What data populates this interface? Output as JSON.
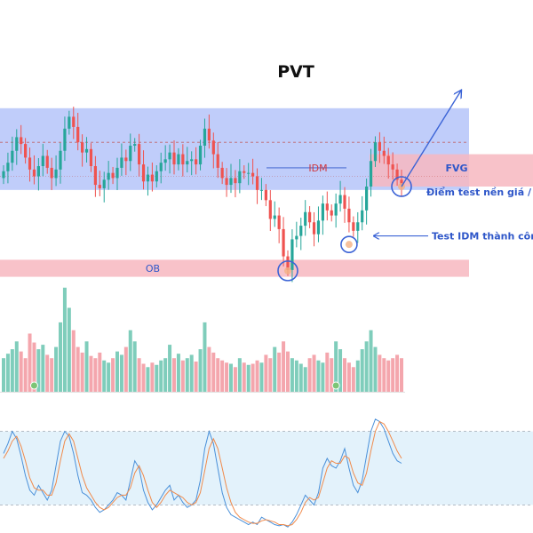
{
  "chart_data": {
    "type": "candlestick",
    "title": "PVT",
    "colors": {
      "up": "#26a69a",
      "down": "#ef5350",
      "vol_up": "#7fcdbb",
      "vol_down": "#f4a6ad",
      "range_box": "#b9c8fa",
      "zone_box": "#f7b7bf",
      "arrow": "#3b63d6",
      "stoch_k": "#4a90d9",
      "stoch_d": "#f08a4b",
      "stoch_band": "#e3f2fb"
    },
    "ohlc_series": {
      "name": "",
      "candles_hint": "daily candles, approx 95 bars",
      "closes": [
        31.4,
        31.9,
        32.6,
        33.4,
        33.0,
        32.2,
        31.5,
        31.1,
        31.7,
        32.3,
        31.6,
        31.0,
        31.5,
        32.6,
        33.9,
        34.6,
        34.0,
        33.1,
        32.5,
        32.7,
        31.7,
        30.6,
        30.4,
        30.9,
        31.3,
        31.0,
        31.6,
        32.2,
        32.0,
        32.9,
        33.0,
        31.8,
        30.8,
        31.2,
        30.8,
        31.4,
        31.9,
        32.1,
        32.5,
        31.8,
        32.4,
        31.8,
        32.0,
        32.1,
        31.8,
        32.9,
        33.9,
        33.2,
        32.4,
        31.6,
        31.0,
        30.6,
        31.0,
        30.7,
        31.4,
        31.3,
        31.3,
        31.1,
        30.3,
        30.3,
        29.7,
        28.6,
        28.8,
        28.0,
        26.4,
        25.6,
        27.4,
        27.6,
        28.2,
        29.0,
        28.4,
        27.7,
        28.5,
        29.5,
        29.1,
        28.8,
        29.5,
        30.0,
        29.2,
        28.4,
        27.9,
        28.4,
        29.1,
        30.5,
        32.0,
        33.1,
        32.6,
        32.3,
        31.8,
        31.5,
        30.9,
        30.6
      ],
      "ylim": [
        24.5,
        36.5
      ]
    },
    "volume_series": {
      "name": "",
      "values": [
        0.3,
        0.34,
        0.38,
        0.45,
        0.36,
        0.3,
        0.52,
        0.44,
        0.38,
        0.42,
        0.33,
        0.3,
        0.4,
        0.62,
        0.93,
        0.75,
        0.55,
        0.4,
        0.35,
        0.45,
        0.32,
        0.3,
        0.35,
        0.28,
        0.26,
        0.3,
        0.36,
        0.33,
        0.4,
        0.55,
        0.45,
        0.3,
        0.25,
        0.22,
        0.26,
        0.24,
        0.28,
        0.3,
        0.42,
        0.3,
        0.34,
        0.28,
        0.3,
        0.33,
        0.27,
        0.38,
        0.62,
        0.4,
        0.35,
        0.3,
        0.28,
        0.26,
        0.25,
        0.22,
        0.3,
        0.26,
        0.24,
        0.25,
        0.28,
        0.26,
        0.33,
        0.3,
        0.4,
        0.35,
        0.45,
        0.36,
        0.3,
        0.28,
        0.25,
        0.22,
        0.3,
        0.33,
        0.28,
        0.26,
        0.35,
        0.3,
        0.45,
        0.38,
        0.3,
        0.26,
        0.22,
        0.28,
        0.38,
        0.45,
        0.55,
        0.4,
        0.33,
        0.3,
        0.28,
        0.3,
        0.33,
        0.3
      ],
      "ylim": [
        0,
        1.0
      ]
    },
    "stochastic_series": {
      "name": "",
      "k": [
        62,
        70,
        80,
        74,
        60,
        44,
        32,
        28,
        36,
        30,
        24,
        32,
        52,
        72,
        80,
        76,
        62,
        44,
        30,
        28,
        24,
        18,
        14,
        16,
        20,
        24,
        30,
        28,
        24,
        40,
        56,
        50,
        32,
        22,
        16,
        20,
        26,
        32,
        36,
        24,
        28,
        22,
        18,
        20,
        24,
        40,
        66,
        80,
        70,
        50,
        30,
        18,
        12,
        10,
        8,
        6,
        4,
        6,
        4,
        10,
        8,
        6,
        4,
        3,
        4,
        2,
        6,
        12,
        20,
        28,
        24,
        20,
        30,
        50,
        58,
        52,
        50,
        56,
        66,
        50,
        36,
        30,
        40,
        60,
        80,
        90,
        88,
        82,
        72,
        62,
        56,
        54
      ],
      "d": [
        58,
        64,
        72,
        76,
        68,
        56,
        42,
        34,
        32,
        32,
        28,
        28,
        38,
        56,
        72,
        78,
        72,
        58,
        44,
        34,
        28,
        22,
        18,
        16,
        18,
        22,
        26,
        28,
        28,
        34,
        46,
        52,
        44,
        32,
        22,
        18,
        22,
        28,
        32,
        30,
        28,
        26,
        22,
        20,
        22,
        30,
        48,
        66,
        74,
        66,
        50,
        34,
        22,
        14,
        10,
        8,
        6,
        5,
        5,
        7,
        8,
        7,
        6,
        4,
        4,
        3,
        4,
        8,
        14,
        22,
        26,
        24,
        26,
        38,
        50,
        56,
        54,
        54,
        60,
        58,
        46,
        38,
        36,
        46,
        64,
        80,
        88,
        86,
        80,
        72,
        64,
        58
      ],
      "levels": [
        80,
        20
      ],
      "ylim": [
        0,
        100
      ]
    },
    "annotations": [
      {
        "text": "PVT",
        "kind": "title"
      },
      {
        "text": "IDM",
        "kind": "label"
      },
      {
        "text": "FVG",
        "kind": "label"
      },
      {
        "text": "OB",
        "kind": "label"
      },
      {
        "text": "Điểm test nền giá / SL",
        "kind": "callout"
      },
      {
        "text": "Test IDM thành công",
        "kind": "callout"
      }
    ],
    "zones": {
      "range_box": {
        "y_low": 30.3,
        "y_high": 35.1
      },
      "fvg": {
        "y_low": 30.5,
        "y_high": 32.4
      },
      "ob": {
        "y_low": 25.2,
        "y_high": 26.2
      },
      "idm_level": 31.6,
      "upper_dashed": 33.1,
      "mid_dotted": 31.1
    }
  }
}
